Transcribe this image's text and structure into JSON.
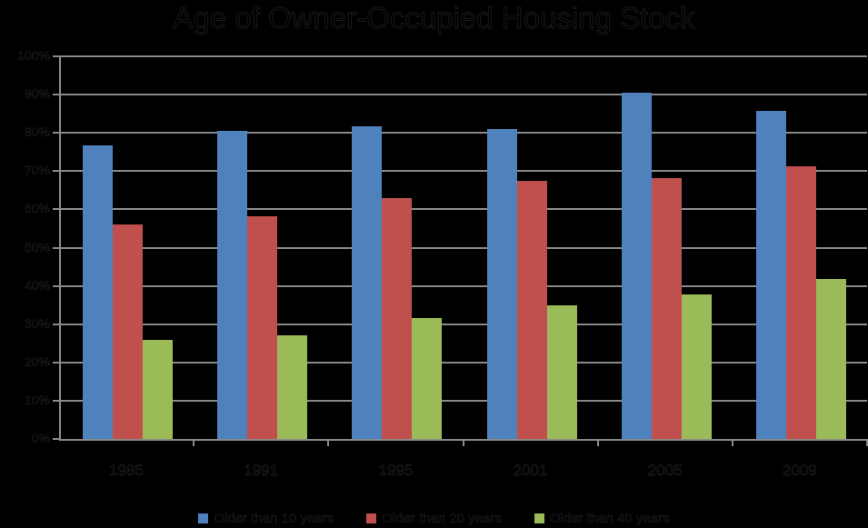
{
  "chart_data": {
    "type": "bar",
    "title": "Age of Owner-Occupied Housing Stock",
    "xlabel": "",
    "ylabel": "",
    "categories": [
      "1985",
      "1991",
      "1995",
      "2001",
      "2005",
      "2009"
    ],
    "series": [
      {
        "name": "Older than 10 years",
        "color": "#4F81BD",
        "values": [
          76.7,
          80.5,
          81.7,
          81.0,
          90.5,
          85.7
        ]
      },
      {
        "name": "Older than 20 years",
        "color": "#C0504D",
        "values": [
          56.0,
          58.2,
          62.9,
          67.5,
          68.2,
          71.3
        ]
      },
      {
        "name": "Older than 40 years",
        "color": "#9BBB59",
        "values": [
          25.9,
          27.1,
          31.6,
          34.9,
          37.8,
          41.8
        ]
      }
    ],
    "yticks": [
      "0%",
      "10%",
      "20%",
      "30%",
      "40%",
      "50%",
      "60%",
      "70%",
      "80%",
      "90%",
      "100%"
    ],
    "ylim": [
      0,
      100
    ],
    "grid": true,
    "legend_position": "bottom"
  }
}
